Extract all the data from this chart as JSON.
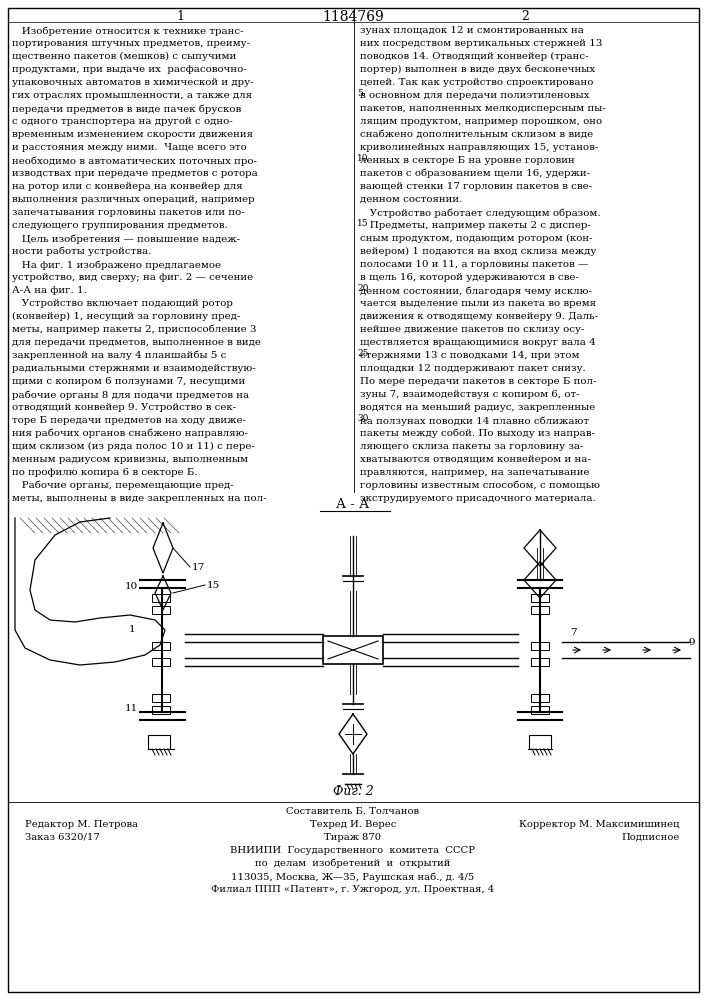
{
  "patent_number": "1184769",
  "col1_header": "1",
  "col2_header": "2",
  "col1_text": [
    "   Изобретение относится к технике транс-",
    "портирования штучных предметов, преиму-",
    "щественно пакетов (мешков) с сыпучими",
    "продуктами, при выдаче их  расфасовочно-",
    "упаковочных автоматов в химической и дру-",
    "гих отраслях промышленности, а также для",
    "передачи предметов в виде пачек брусков",
    "с одного транспортера на другой с одно-",
    "временным изменением скорости движения",
    "и расстояния между ними.  Чаще всего это",
    "необходимо в автоматических поточных про-",
    "изводствах при передаче предметов с ротора",
    "на ротор или с конвейера на конвейер для",
    "выполнения различных операций, например",
    "запечатывания горловины пакетов или по-",
    "следующего группирования предметов.",
    "   Цель изобретения — повышение надеж-",
    "ности работы устройства.",
    "   На фиг. 1 изображено предлагаемое",
    "устройство, вид сверху; на фиг. 2 — сечение",
    "А-А на фиг. 1.",
    "   Устройство включает подающий ротор",
    "(конвейер) 1, несущий за горловину пред-",
    "меты, например пакеты 2, приспособление 3",
    "для передачи предметов, выполненное в виде",
    "закрепленной на валу 4 планшайбы 5 с",
    "радиальными стержнями и взаимодействую-",
    "щими с копиром 6 ползунами 7, несущими",
    "рабочие органы 8 для подачи предметов на",
    "отводящий конвейер 9. Устройство в сек-",
    "торе Б передачи предметов на ходу движе-",
    "ния рабочих органов снабжено направляю-",
    "щим склизом (из ряда полос 10 и 11) с пере-",
    "менным радиусом кривизны, выполненным",
    "по профилю копира 6 в секторе Б.",
    "   Рабочие органы, перемещающие пред-",
    "меты, выполнены в виде закрепленных на пол-"
  ],
  "col2_text": [
    "зунах площадок 12 и смонтированных на",
    "них посредством вертикальных стержней 13",
    "поводков 14. Отводящий конвейер (транс-",
    "портер) выполнен в виде двух бесконечных",
    "цепей. Так как устройство спроектировано",
    "в основном для передачи полиэтиленовых",
    "пакетов, наполненных мелкодисперсным пы-",
    "лящим продуктом, например порошком, оно",
    "снабжено дополнительным склизом в виде",
    "криволинейных направляющих 15, установ-",
    "ленных в секторе Б на уровне горловин",
    "пакетов с образованием щели 16, удержи-",
    "вающей стенки 17 горловин пакетов в све-",
    "денном состоянии.",
    "   Устройство работает следующим образом.",
    "   Предметы, например пакеты 2 с диспер-",
    "сным продуктом, подающим ротором (кон-",
    "вейером) 1 подаются на вход склиза между",
    "полосами 10 и 11, а горловины пакетов —",
    "в щель 16, которой удерживаются в све-",
    "денном состоянии, благодаря чему исклю-",
    "чается выделение пыли из пакета во время",
    "движения к отводящему конвейеру 9. Даль-",
    "нейшее движение пакетов по склизу осу-",
    "ществляется вращающимися вокруг вала 4",
    "стержнями 13 с поводками 14, при этом",
    "площадки 12 поддерживают пакет снизу.",
    "По мере передачи пакетов в секторе Б пол-",
    "зуны 7, взаимодействуя с копиром 6, от-",
    "водятся на меньший радиус, закрепленные",
    "на ползунах поводки 14 плавно сближают",
    "пакеты между собой. По выходу из направ-",
    "ляющего склиза пакеты за горловину за-",
    "хватываются отводящим конвейером и на-",
    "правляются, например, на запечатывание",
    "горловины известным способом, с помощью",
    "экструдируемого присадочного материала."
  ],
  "section_label": "А - А",
  "fig2_label": "Фиг. 2",
  "footer_author": "Составитель Б. Толчанов",
  "footer_editor": "Редактор М. Петрова",
  "footer_tech": "Техред И. Верес",
  "footer_corrector": "Корректор М. Максимишинец",
  "footer_order": "Заказ 6320/17",
  "footer_print": "Тираж 870",
  "footer_signed": "Подписное",
  "footer_vniip1": "ВНИИПИ  Государственного  комитета  СССР",
  "footer_vniip2": "по  делам  изобретений  и  открытий",
  "footer_address": "113035, Москва, Ж—35, Раушская наб., д. 4/5",
  "footer_branch": "Филиал ППП «Патент», г. Ужгород, ул. Проектная, 4",
  "bg_color": "#ffffff",
  "text_color": "#000000",
  "line_color": "#000000"
}
